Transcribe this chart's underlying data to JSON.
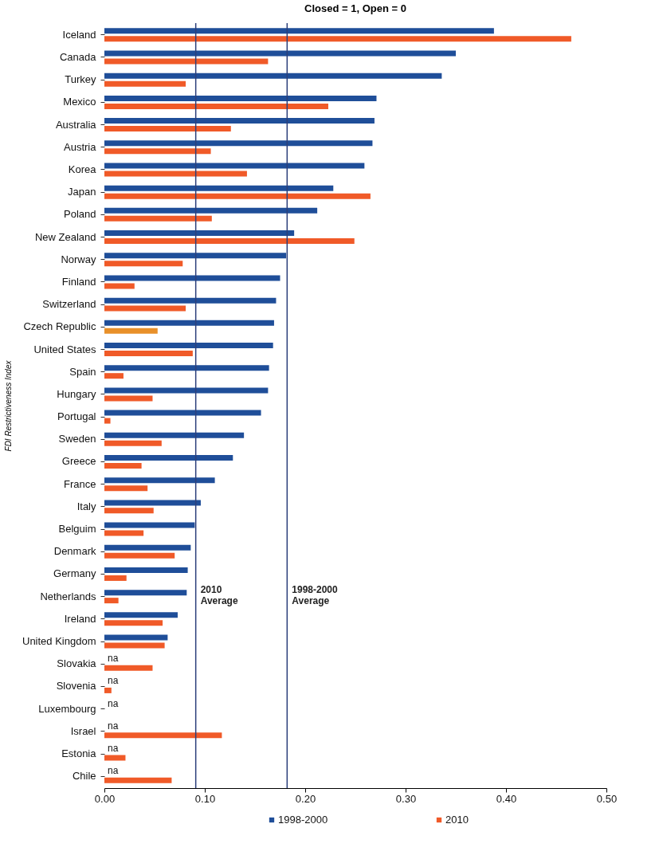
{
  "chart_data": {
    "type": "bar",
    "orientation": "horizontal",
    "title": "Closed = 1, Open = 0",
    "ylabel": "FDI Restrictiveness Index",
    "categories": [
      "Iceland",
      "Canada",
      "Turkey",
      "Mexico",
      "Australia",
      "Austria",
      "Korea",
      "Japan",
      "Poland",
      "New Zealand",
      "Norway",
      "Finland",
      "Switzerland",
      "Czech Republic",
      "United States",
      "Spain",
      "Hungary",
      "Portugal",
      "Sweden",
      "Greece",
      "France",
      "Italy",
      "Belguim",
      "Denmark",
      "Germany",
      "Netherlands",
      "Ireland",
      "United Kingdom",
      "Slovakia",
      "Slovenia",
      "Luxembourg",
      "Israel",
      "Estonia",
      "Chile"
    ],
    "series": [
      {
        "name": "1998-2000",
        "color": "#1f4e99",
        "values": [
          0.388,
          0.35,
          0.336,
          0.271,
          0.269,
          0.267,
          0.259,
          0.228,
          0.212,
          0.189,
          0.181,
          0.175,
          0.171,
          0.169,
          0.168,
          0.164,
          0.163,
          0.156,
          0.139,
          0.128,
          0.11,
          0.096,
          0.09,
          0.086,
          0.083,
          0.082,
          0.073,
          0.063,
          null,
          null,
          null,
          null,
          null,
          null
        ],
        "value_labels": [
          null,
          null,
          null,
          null,
          null,
          null,
          null,
          null,
          null,
          null,
          null,
          null,
          null,
          null,
          null,
          null,
          null,
          null,
          null,
          null,
          null,
          null,
          null,
          null,
          null,
          null,
          null,
          null,
          "na",
          "na",
          "na",
          "na",
          "na",
          "na"
        ]
      },
      {
        "name": "2010",
        "color": "#f05a28",
        "colors": [
          "#f05a28",
          "#f05a28",
          "#f05a28",
          "#f05a28",
          "#f05a28",
          "#f05a28",
          "#f05a28",
          "#f05a28",
          "#f05a28",
          "#f05a28",
          "#f05a28",
          "#f05a28",
          "#f05a28",
          "#e8902a",
          "#f05a28",
          "#f05a28",
          "#f05a28",
          "#f05a28",
          "#f05a28",
          "#f05a28",
          "#f05a28",
          "#f05a28",
          "#f05a28",
          "#f05a28",
          "#f05a28",
          "#f05a28",
          "#f05a28",
          "#f05a28",
          "#f05a28",
          "#f05a28",
          "#f05a28",
          "#f05a28",
          "#f05a28",
          "#f05a28"
        ],
        "values": [
          0.465,
          0.163,
          0.081,
          0.223,
          0.126,
          0.106,
          0.142,
          0.265,
          0.107,
          0.249,
          0.078,
          0.03,
          0.081,
          0.053,
          0.088,
          0.019,
          0.048,
          0.006,
          0.057,
          0.037,
          0.043,
          0.049,
          0.039,
          0.07,
          0.022,
          0.014,
          0.058,
          0.06,
          0.048,
          0.007,
          0,
          0.117,
          0.021,
          0.067
        ]
      }
    ],
    "xlim": [
      0,
      0.5
    ],
    "xticks": [
      {
        "value": 0,
        "label": "0.00"
      },
      {
        "value": 0.1,
        "label": "0.10"
      },
      {
        "value": 0.2,
        "label": "0.20"
      },
      {
        "value": 0.3,
        "label": "0.30"
      },
      {
        "value": 0.4,
        "label": "0.40"
      },
      {
        "value": 0.5,
        "label": "0.50"
      }
    ],
    "ref_lines": [
      {
        "axis": "x",
        "value": 0.091,
        "label": "2010 Average",
        "color": "#2b3f7a"
      },
      {
        "axis": "x",
        "value": 0.182,
        "label": "1998-2000 Average",
        "color": "#2b3f7a"
      }
    ],
    "legend": "bottom",
    "grid": false
  }
}
